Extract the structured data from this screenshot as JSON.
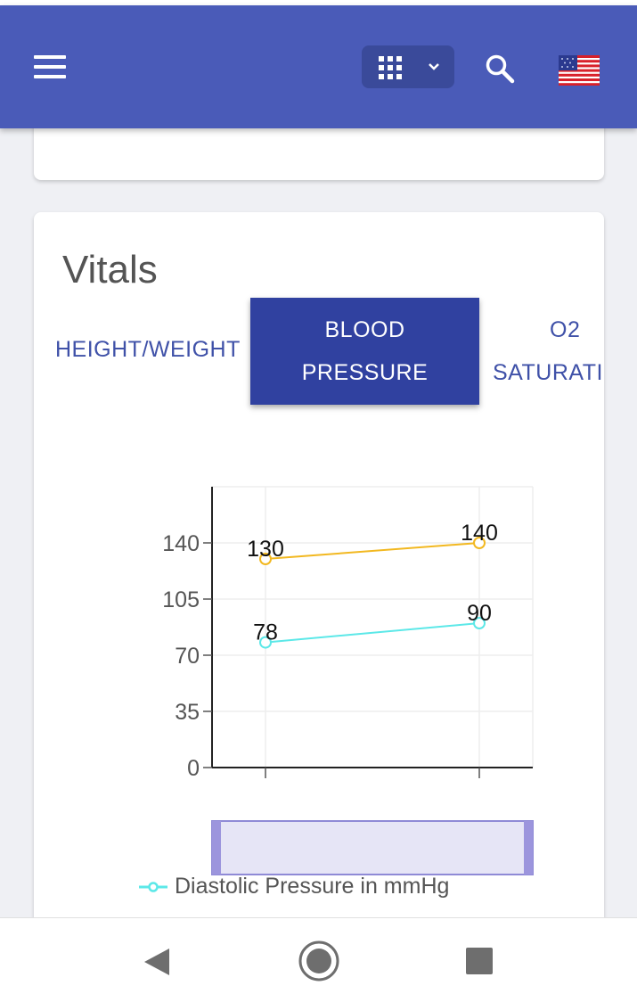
{
  "app_bar": {
    "menu_icon": "hamburger-menu-icon",
    "apps_icon": "grid-apps-icon",
    "dropdown_icon": "chevron-down-icon",
    "search_icon": "search-icon",
    "language_flag": "us-flag-icon",
    "color": "#4a5bb8"
  },
  "vitals": {
    "title": "Vitals",
    "tabs": [
      {
        "label": "HEIGHT/WEIGHT",
        "selected": false
      },
      {
        "label_line1": "BLOOD",
        "label_line2": "PRESSURE",
        "selected": true
      },
      {
        "label_line1": "O2",
        "label_line2": "SATURATION",
        "selected": false
      }
    ],
    "legend": {
      "label": "Diastolic Pressure in mmHg",
      "color": "#5ce8e8"
    }
  },
  "chart_data": {
    "type": "line",
    "x": [
      "",
      ""
    ],
    "series": [
      {
        "values": [
          130,
          140
        ],
        "color": "#f2b820"
      },
      {
        "name": "Diastolic Pressure in mmHg",
        "values": [
          78,
          90
        ],
        "color": "#5ce8e8"
      }
    ],
    "ylim": [
      0,
      175
    ],
    "yticks": [
      0,
      35,
      70,
      105,
      140
    ],
    "grid": true,
    "legend": "bottom",
    "brush": true
  },
  "nav_bar": {
    "back_icon": "back-triangle-icon",
    "home_icon": "home-circle-icon",
    "recents_icon": "recents-square-icon"
  }
}
